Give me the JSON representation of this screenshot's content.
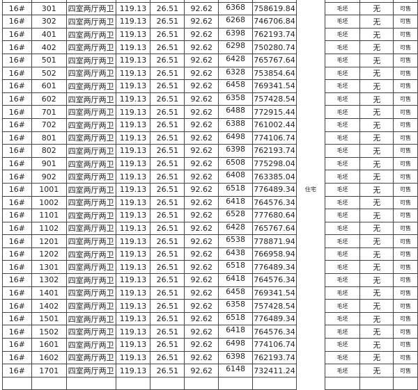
{
  "usage_label": "住宅",
  "rows": [
    [
      "16#",
      "301",
      "四室两厅两卫",
      "119.13",
      "26.51",
      "92.62",
      "6368",
      "758619.84",
      "毛坯",
      "无",
      "可售"
    ],
    [
      "16#",
      "302",
      "四室两厅两卫",
      "119.13",
      "26.51",
      "92.62",
      "6268",
      "746706.84",
      "毛坯",
      "无",
      "可售"
    ],
    [
      "16#",
      "401",
      "四室两厅两卫",
      "119.13",
      "26.51",
      "92.62",
      "6398",
      "762193.74",
      "毛坯",
      "无",
      "可售"
    ],
    [
      "16#",
      "402",
      "四室两厅两卫",
      "119.13",
      "26.51",
      "92.62",
      "6298",
      "750280.74",
      "毛坯",
      "无",
      "可售"
    ],
    [
      "16#",
      "501",
      "四室两厅两卫",
      "119.13",
      "26.51",
      "92.62",
      "6428",
      "765767.64",
      "毛坯",
      "无",
      "可售"
    ],
    [
      "16#",
      "502",
      "四室两厅两卫",
      "119.13",
      "26.51",
      "92.62",
      "6328",
      "753854.64",
      "毛坯",
      "无",
      "可售"
    ],
    [
      "16#",
      "601",
      "四室两厅两卫",
      "119.13",
      "26.51",
      "92.62",
      "6458",
      "769341.54",
      "毛坯",
      "无",
      "可售"
    ],
    [
      "16#",
      "602",
      "四室两厅两卫",
      "119.13",
      "26.51",
      "92.62",
      "6358",
      "757428.54",
      "毛坯",
      "无",
      "可售"
    ],
    [
      "16#",
      "701",
      "四室两厅两卫",
      "119.13",
      "26.51",
      "92.62",
      "6488",
      "772915.44",
      "毛坯",
      "无",
      "可售"
    ],
    [
      "16#",
      "702",
      "四室两厅两卫",
      "119.13",
      "26.51",
      "92.62",
      "6388",
      "761002.44",
      "毛坯",
      "无",
      "可售"
    ],
    [
      "16#",
      "801",
      "四室两厅两卫",
      "119.13",
      "26.51",
      "92.62",
      "6498",
      "774106.74",
      "毛坯",
      "无",
      "可售"
    ],
    [
      "16#",
      "802",
      "四室两厅两卫",
      "119.13",
      "26.51",
      "92.62",
      "6398",
      "762193.74",
      "毛坯",
      "无",
      "可售"
    ],
    [
      "16#",
      "901",
      "四室两厅两卫",
      "119.13",
      "26.51",
      "92.62",
      "6508",
      "775298.04",
      "毛坯",
      "无",
      "可售"
    ],
    [
      "16#",
      "902",
      "四室两厅两卫",
      "119.13",
      "26.51",
      "92.62",
      "6408",
      "763385.04",
      "毛坯",
      "无",
      "可售"
    ],
    [
      "16#",
      "1001",
      "四室两厅两卫",
      "119.13",
      "26.51",
      "92.62",
      "6518",
      "776489.34",
      "毛坯",
      "无",
      "可售"
    ],
    [
      "16#",
      "1002",
      "四室两厅两卫",
      "119.13",
      "26.51",
      "92.62",
      "6418",
      "764576.34",
      "毛坯",
      "无",
      "可售"
    ],
    [
      "16#",
      "1101",
      "四室两厅两卫",
      "119.13",
      "26.51",
      "92.62",
      "6528",
      "777680.64",
      "毛坯",
      "无",
      "可售"
    ],
    [
      "16#",
      "1102",
      "四室两厅两卫",
      "119.13",
      "26.51",
      "92.62",
      "6428",
      "765767.64",
      "毛坯",
      "无",
      "可售"
    ],
    [
      "16#",
      "1201",
      "四室两厅两卫",
      "119.13",
      "26.51",
      "92.62",
      "6538",
      "778871.94",
      "毛坯",
      "无",
      "可售"
    ],
    [
      "16#",
      "1202",
      "四室两厅两卫",
      "119.13",
      "26.51",
      "92.62",
      "6438",
      "766958.94",
      "毛坯",
      "无",
      "可售"
    ],
    [
      "16#",
      "1301",
      "四室两厅两卫",
      "119.13",
      "26.51",
      "92.62",
      "6518",
      "776489.34",
      "毛坯",
      "无",
      "可售"
    ],
    [
      "16#",
      "1302",
      "四室两厅两卫",
      "119.13",
      "26.51",
      "92.62",
      "6418",
      "764576.34",
      "毛坯",
      "无",
      "可售"
    ],
    [
      "16#",
      "1401",
      "四室两厅两卫",
      "119.13",
      "26.51",
      "92.62",
      "6458",
      "769341.54",
      "毛坯",
      "无",
      "可售"
    ],
    [
      "16#",
      "1402",
      "四室两厅两卫",
      "119.13",
      "26.51",
      "92.62",
      "6358",
      "757428.54",
      "毛坯",
      "无",
      "可售"
    ],
    [
      "16#",
      "1501",
      "四室两厅两卫",
      "119.13",
      "26.51",
      "92.62",
      "6518",
      "776489.34",
      "毛坯",
      "无",
      "可售"
    ],
    [
      "16#",
      "1502",
      "四室两厅两卫",
      "119.13",
      "26.51",
      "92.62",
      "6418",
      "764576.34",
      "毛坯",
      "无",
      "可售"
    ],
    [
      "16#",
      "1601",
      "四室两厅两卫",
      "119.13",
      "26.51",
      "92.62",
      "6498",
      "774106.74",
      "毛坯",
      "无",
      "可售"
    ],
    [
      "16#",
      "1602",
      "四室两厅两卫",
      "119.13",
      "26.51",
      "92.62",
      "6398",
      "762193.74",
      "毛坯",
      "无",
      "可售"
    ],
    [
      "16#",
      "1701",
      "四室两厅两卫",
      "119.13",
      "26.51",
      "92.62",
      "6148",
      "732411.24",
      "毛坯",
      "无",
      "可售"
    ]
  ]
}
